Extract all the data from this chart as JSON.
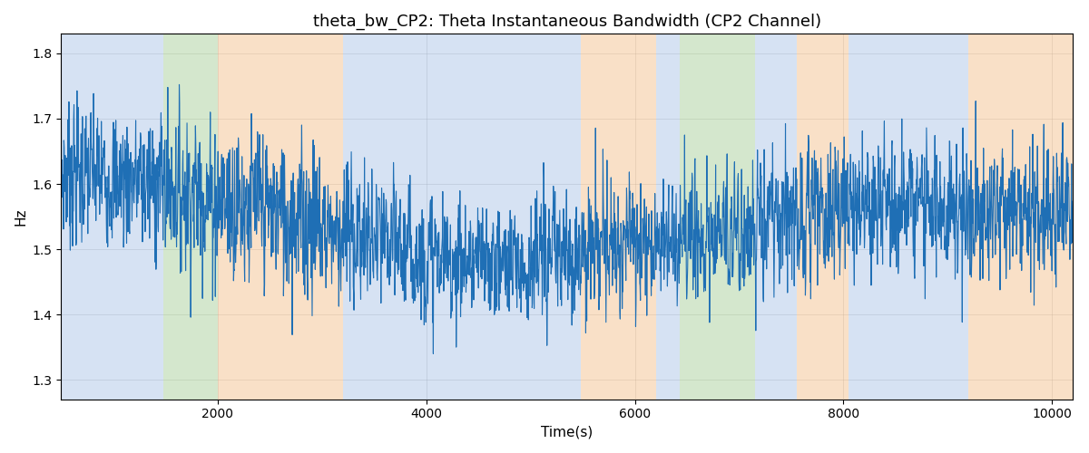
{
  "title": "theta_bw_CP2: Theta Instantaneous Bandwidth (CP2 Channel)",
  "xlabel": "Time(s)",
  "ylabel": "Hz",
  "xlim": [
    500,
    10200
  ],
  "ylim": [
    1.27,
    1.83
  ],
  "yticks": [
    1.3,
    1.4,
    1.5,
    1.6,
    1.7,
    1.8
  ],
  "xticks": [
    2000,
    4000,
    6000,
    8000,
    10000
  ],
  "line_color": "#1f6fb5",
  "line_width": 0.8,
  "background_color": "#ffffff",
  "regions": [
    {
      "xmin": 500,
      "xmax": 1480,
      "color": "#aec6e8",
      "alpha": 0.5
    },
    {
      "xmin": 1480,
      "xmax": 2000,
      "color": "#b2d4a4",
      "alpha": 0.55
    },
    {
      "xmin": 2000,
      "xmax": 3200,
      "color": "#f5c89a",
      "alpha": 0.55
    },
    {
      "xmin": 3200,
      "xmax": 5480,
      "color": "#aec6e8",
      "alpha": 0.5
    },
    {
      "xmin": 5480,
      "xmax": 6200,
      "color": "#f5c89a",
      "alpha": 0.55
    },
    {
      "xmin": 6200,
      "xmax": 6430,
      "color": "#aec6e8",
      "alpha": 0.5
    },
    {
      "xmin": 6430,
      "xmax": 7150,
      "color": "#b2d4a4",
      "alpha": 0.55
    },
    {
      "xmin": 7150,
      "xmax": 7550,
      "color": "#aec6e8",
      "alpha": 0.5
    },
    {
      "xmin": 7550,
      "xmax": 8050,
      "color": "#f5c89a",
      "alpha": 0.55
    },
    {
      "xmin": 8050,
      "xmax": 9200,
      "color": "#aec6e8",
      "alpha": 0.5
    },
    {
      "xmin": 9200,
      "xmax": 10200,
      "color": "#f5c89a",
      "alpha": 0.55
    }
  ],
  "n_points": 3000,
  "t_start": 500,
  "t_end": 10200,
  "random_seed": 7,
  "title_fontsize": 13,
  "label_fontsize": 11,
  "tick_fontsize": 10
}
